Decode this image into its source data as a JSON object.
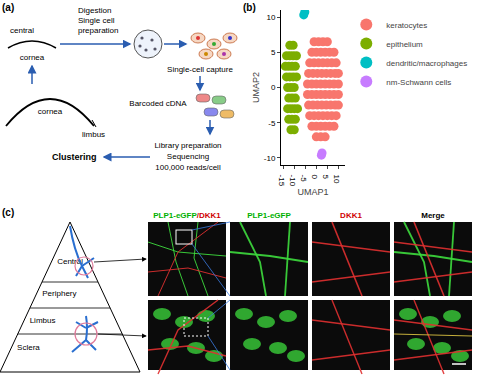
{
  "panel_labels": [
    "(a)",
    "(b)",
    "(c)"
  ],
  "panel_a": {
    "central_label": "central",
    "cornea_small": "cornea",
    "cornea_big": "cornea",
    "limbus": "limbus",
    "step1": [
      "Digestion",
      "Single cell",
      "preparation"
    ],
    "step2": "Single-cell capture",
    "step3": "Barcoded cDNA",
    "step4": [
      "Library preparation",
      "Sequencing",
      "100,000 reads/cell"
    ],
    "step5": "Clustering"
  },
  "chart_data": {
    "type": "scatter",
    "x_label": "UMAP1",
    "y_label": "UMAP2",
    "xlim": [
      -16,
      13
    ],
    "xticks": [
      -15,
      -10,
      -5,
      0,
      5,
      10
    ],
    "ylim": [
      -11,
      11
    ],
    "yticks": [
      -10,
      -5,
      0,
      5,
      10
    ],
    "grid": false,
    "legend": "right",
    "series": [
      {
        "name": "keratocytes",
        "color": "#F8766D",
        "x": [
          -1,
          1,
          3,
          5,
          -2,
          0,
          2,
          4,
          6,
          8,
          -3,
          -1,
          1,
          3,
          5,
          7,
          9,
          -3.5,
          -1.5,
          0.5,
          2.5,
          4.5,
          6.5,
          8.5,
          10,
          -4,
          -2,
          0,
          2,
          4,
          6,
          8,
          10,
          -4,
          -2,
          0,
          2,
          4,
          6,
          8,
          10,
          -3.5,
          -1.5,
          0.5,
          2.5,
          4.5,
          6.5,
          8.5,
          10,
          -3,
          -1,
          1,
          3,
          5,
          7,
          9,
          -2,
          0,
          2,
          4,
          6,
          8,
          0,
          2,
          4
        ],
        "y": [
          6.5,
          6.5,
          6.5,
          6.5,
          5,
          5,
          5,
          5,
          5,
          5,
          3.5,
          3.5,
          3.5,
          3.5,
          3.5,
          3.5,
          3.5,
          2,
          2,
          2,
          2,
          2,
          2,
          2,
          2,
          0.5,
          0.5,
          0.5,
          0.5,
          0.5,
          0.5,
          0.5,
          0.5,
          -1,
          -1,
          -1,
          -1,
          -1,
          -1,
          -1,
          -1,
          -2.5,
          -2.5,
          -2.5,
          -2.5,
          -2.5,
          -2.5,
          -2.5,
          -2.5,
          -4,
          -4,
          -4,
          -4,
          -4,
          -4,
          -4,
          -5.5,
          -5.5,
          -5.5,
          -5.5,
          -5.5,
          -5.5,
          -7,
          -7,
          -7
        ]
      },
      {
        "name": "epithelium",
        "color": "#7CAE00",
        "x": [
          -12,
          -10.5,
          -13.5,
          -12,
          -10.5,
          -9,
          -14,
          -12.5,
          -11,
          -9.5,
          -13.5,
          -12,
          -10.5,
          -9,
          -13,
          -11.5,
          -10,
          -12.5,
          -11,
          -9.5,
          -13,
          -11.5,
          -10,
          -8.5,
          -12.5,
          -11,
          -9.5,
          -11.5,
          -10
        ],
        "y": [
          6,
          6,
          4.5,
          4.5,
          4.5,
          4.5,
          3,
          3,
          3,
          3,
          1.5,
          1.5,
          1.5,
          1.5,
          0,
          0,
          0,
          -1.5,
          -1.5,
          -1.5,
          -3,
          -3,
          -3,
          -3,
          -4.5,
          -4.5,
          -4.5,
          -6,
          -6
        ]
      },
      {
        "name": "dendritic/macrophages",
        "color": "#00BFC4",
        "x": [
          -5.7,
          -5.2
        ],
        "y": [
          10.3,
          10.7
        ]
      },
      {
        "name": "nm-Schwann cells",
        "color": "#C77CFF",
        "x": [
          2.3,
          2.6
        ],
        "y": [
          -9.6,
          -9.3
        ]
      }
    ]
  },
  "panel_c": {
    "regions": [
      "Central",
      "Periphery",
      "Limbus",
      "Sclera"
    ],
    "columns": [
      [
        {
          "text": "PLP1-eGFP",
          "color": "#00b000"
        },
        {
          "text": "/DKK1",
          "color": "#d00000"
        }
      ],
      [
        {
          "text": "PLP1-eGFP",
          "color": "#00b000"
        }
      ],
      [
        {
          "text": "DKK1",
          "color": "#d00000"
        }
      ],
      [
        {
          "text": "Merge",
          "color": "#000000"
        }
      ]
    ]
  }
}
